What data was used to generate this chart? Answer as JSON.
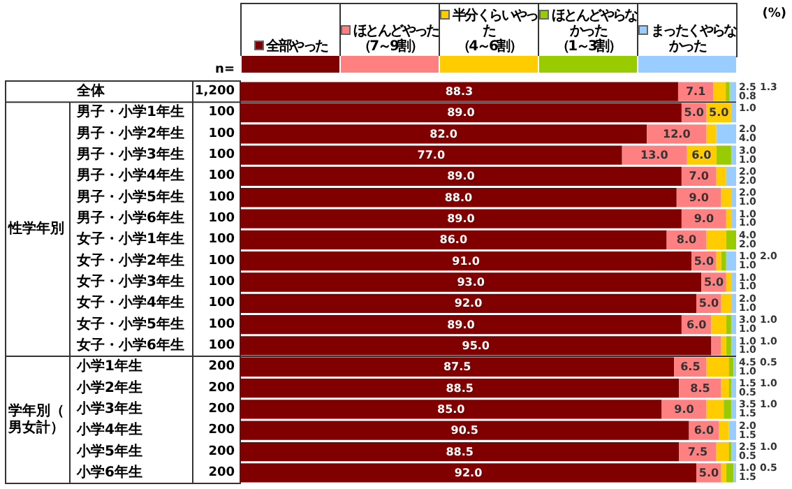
{
  "chart_data": {
    "type": "bar",
    "orientation": "horizontal",
    "stacked": true,
    "legend": "top",
    "tick_labels": "y",
    "xlim": [
      0,
      100
    ],
    "categories": [
      "全体",
      "男子・小学1年生",
      "男子・小学2年生",
      "男子・小学3年生",
      "男子・小学4年生",
      "男子・小学5年生",
      "男子・小学6年生",
      "女子・小学1年生",
      "女子・小学2年生",
      "女子・小学3年生",
      "女子・小学4年生",
      "女子・小学5年生",
      "女子・小学6年生",
      "小学1年生",
      "小学2年生",
      "小学3年生",
      "小学4年生",
      "小学5年生",
      "小学6年生"
    ],
    "series": [
      {
        "name": "全部やった",
        "color": "#800000",
        "values": [
          88.3,
          89.0,
          82.0,
          77.0,
          89.0,
          88.0,
          89.0,
          86.0,
          91.0,
          93.0,
          92.0,
          89.0,
          95.0,
          87.5,
          88.5,
          85.0,
          90.5,
          88.5,
          92.0
        ],
        "value_labels": [
          "88.3",
          "89.0",
          "82.0",
          "77.0",
          "89.0",
          "88.0",
          "89.0",
          "86.0",
          "91.0",
          "93.0",
          "92.0",
          "89.0",
          "95.0",
          "87.5",
          "88.5",
          "85.0",
          "90.5",
          "88.5",
          "92.0"
        ]
      },
      {
        "name": "ほとんどやった（7～9割）",
        "color": "#ff8080",
        "values": [
          7.1,
          5.0,
          12.0,
          13.0,
          7.0,
          9.0,
          9.0,
          8.0,
          5.0,
          5.0,
          5.0,
          6.0,
          2.0,
          6.5,
          8.5,
          9.0,
          6.0,
          7.5,
          5.0
        ],
        "value_labels": [
          "7.1",
          "5.0",
          "12.0",
          "13.0",
          "7.0",
          "9.0",
          "9.0",
          "8.0",
          "5.0",
          "5.0",
          "5.0",
          "6.0",
          null,
          "6.5",
          "8.5",
          "9.0",
          "6.0",
          "7.5",
          "5.0"
        ]
      },
      {
        "name": "半分くらいやった（4～6割）",
        "color": "#ffcc00",
        "values": [
          2.5,
          5.0,
          2.0,
          6.0,
          2.0,
          2.0,
          1.0,
          4.0,
          1.0,
          1.0,
          2.0,
          3.0,
          1.0,
          4.5,
          1.5,
          3.5,
          2.0,
          2.5,
          1.0
        ],
        "value_labels": [
          "2.5",
          "5.0",
          "2.0",
          "6.0",
          "2.0",
          "2.0",
          "1.0",
          "4.0",
          "1.0",
          "1.0",
          "2.0",
          "3.0",
          "1.0",
          "4.5",
          "1.5",
          "3.5",
          "2.0",
          "2.5",
          "1.0"
        ]
      },
      {
        "name": "ほとんどやらなかった（1～3割）",
        "color": "#99cc00",
        "values": [
          0.8,
          0,
          0,
          3.0,
          0,
          0,
          0,
          2.0,
          1.0,
          0,
          0,
          1.0,
          1.0,
          1.0,
          0.5,
          1.5,
          0,
          0.5,
          1.5
        ],
        "value_labels": [
          "0.8",
          null,
          null,
          "3.0",
          null,
          null,
          null,
          "2.0",
          "1.0",
          null,
          null,
          "1.0",
          "1.0",
          "1.0",
          "0.5",
          "1.5",
          null,
          "0.5",
          "1.5"
        ]
      },
      {
        "name": "まったくやらなかった",
        "color": "#99ccff",
        "values": [
          1.3,
          1.0,
          4.0,
          1.0,
          2.0,
          1.0,
          1.0,
          0,
          2.0,
          1.0,
          1.0,
          1.0,
          1.0,
          0.5,
          1.0,
          1.0,
          1.5,
          1.0,
          0.5
        ],
        "value_labels": [
          "1.3",
          "1.0",
          "4.0",
          "1.0",
          "2.0",
          "1.0",
          "1.0",
          null,
          "2.0",
          "1.0",
          "1.0",
          "1.0",
          "1.0",
          "0.5",
          "1.0",
          "1.0",
          "1.5",
          "1.0",
          "0.5"
        ]
      }
    ],
    "annotations": [
      "(%)",
      "n=",
      "性学年別",
      "学年別（男女計）",
      "1,200",
      "100",
      "100",
      "100",
      "100",
      "100",
      "100",
      "100",
      "100",
      "100",
      "100",
      "100",
      "100",
      "200",
      "200",
      "200",
      "200",
      "200",
      "200"
    ]
  }
}
